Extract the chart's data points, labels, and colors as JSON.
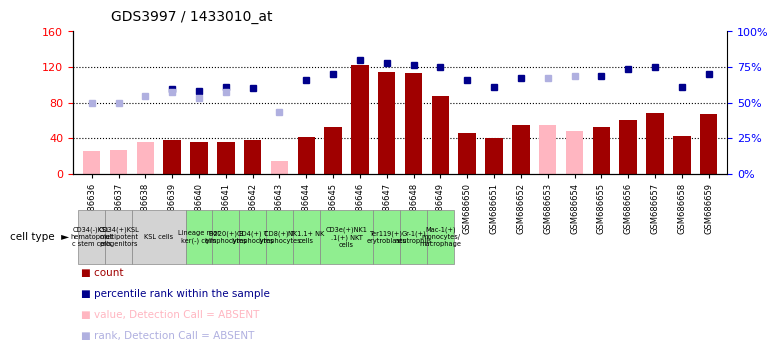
{
  "title": "GDS3997 / 1433010_at",
  "gsm_labels": [
    "GSM686636",
    "GSM686637",
    "GSM686638",
    "GSM686639",
    "GSM686640",
    "GSM686641",
    "GSM686642",
    "GSM686643",
    "GSM686644",
    "GSM686645",
    "GSM686646",
    "GSM686647",
    "GSM686648",
    "GSM686649",
    "GSM686650",
    "GSM686651",
    "GSM686652",
    "GSM686653",
    "GSM686654",
    "GSM686655",
    "GSM686656",
    "GSM686657",
    "GSM686658",
    "GSM686659"
  ],
  "cell_type_groups": [
    {
      "label": "CD34(-)KSL\nhematopoiet\nc stem cells",
      "start": 0,
      "end": 1,
      "color": "#d3d3d3"
    },
    {
      "label": "CD34(+)KSL\nmultipotent\nprogenitors",
      "start": 1,
      "end": 2,
      "color": "#d3d3d3"
    },
    {
      "label": "KSL cells",
      "start": 2,
      "end": 4,
      "color": "#d3d3d3"
    },
    {
      "label": "Lineage mar\nker(-) cells",
      "start": 4,
      "end": 5,
      "color": "#90ee90"
    },
    {
      "label": "B220(+) B\nlymphocytes",
      "start": 5,
      "end": 6,
      "color": "#90ee90"
    },
    {
      "label": "CD4(+) T\nlymphocytes",
      "start": 6,
      "end": 7,
      "color": "#90ee90"
    },
    {
      "label": "CD8(+) T\nlymphocytes",
      "start": 7,
      "end": 8,
      "color": "#90ee90"
    },
    {
      "label": "NK1.1+ NK\ncells",
      "start": 8,
      "end": 9,
      "color": "#90ee90"
    },
    {
      "label": "CD3e(+)NK1\n.1(+) NKT\ncells",
      "start": 9,
      "end": 11,
      "color": "#90ee90"
    },
    {
      "label": "Ter119(+)\nerytroblasts",
      "start": 11,
      "end": 12,
      "color": "#90ee90"
    },
    {
      "label": "Gr-1(+)\nneutrophils",
      "start": 12,
      "end": 13,
      "color": "#90ee90"
    },
    {
      "label": "Mac-1(+)\nmonocytes/\nmacrophage",
      "start": 13,
      "end": 14,
      "color": "#90ee90"
    }
  ],
  "count_values": [
    null,
    null,
    null,
    38,
    35,
    36,
    38,
    null,
    41,
    52,
    122,
    114,
    113,
    87,
    46,
    40,
    55,
    null,
    null,
    52,
    60,
    68,
    42,
    67
  ],
  "count_absent": [
    25,
    27,
    35,
    null,
    null,
    null,
    null,
    14,
    null,
    null,
    null,
    null,
    null,
    null,
    null,
    null,
    null,
    55,
    48,
    null,
    null,
    null,
    null,
    null
  ],
  "rank_present": [
    null,
    null,
    null,
    95,
    93,
    97,
    96,
    null,
    105,
    112,
    128,
    125,
    122,
    120,
    105,
    97,
    108,
    null,
    null,
    110,
    118,
    120,
    97,
    112
  ],
  "rank_absent": [
    79,
    79,
    87,
    92,
    85,
    92,
    null,
    69,
    null,
    null,
    null,
    null,
    null,
    null,
    null,
    null,
    null,
    108,
    110,
    null,
    null,
    null,
    null,
    null
  ],
  "ylim_left": [
    0,
    160
  ],
  "yticks_left": [
    0,
    40,
    80,
    120,
    160
  ],
  "bar_color_present": "#a00000",
  "bar_color_absent": "#ffb6c1",
  "dot_color_present": "#00008b",
  "dot_color_absent": "#b0b0e0",
  "bg_color": "#ffffff",
  "legend_items": [
    {
      "color": "#a00000",
      "label": "count"
    },
    {
      "color": "#00008b",
      "label": "percentile rank within the sample"
    },
    {
      "color": "#ffb6c1",
      "label": "value, Detection Call = ABSENT"
    },
    {
      "color": "#b0b0e0",
      "label": "rank, Detection Call = ABSENT"
    }
  ]
}
